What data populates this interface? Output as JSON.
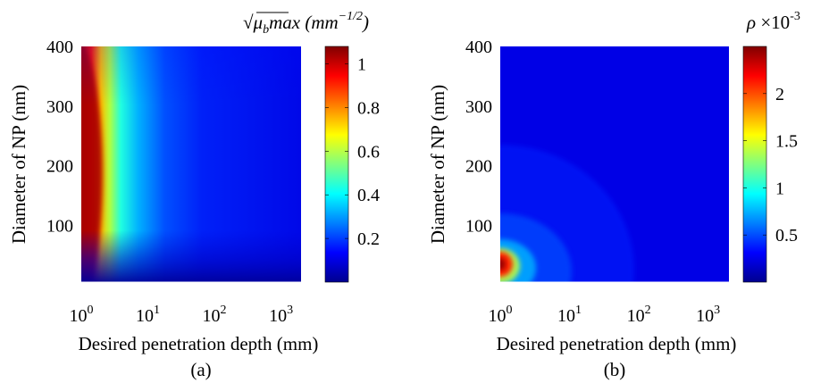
{
  "chart_data": [
    {
      "type": "heatmap",
      "panel_label": "(a)",
      "xlabel": "Desired penetration depth (mm)",
      "ylabel": "Diameter of NP (nm)",
      "x_scale": "log",
      "xlim": [
        1,
        2000
      ],
      "ylim": [
        5,
        400
      ],
      "x_ticks": [
        {
          "base": "10",
          "exp": "0",
          "value": 1
        },
        {
          "base": "10",
          "exp": "1",
          "value": 10
        },
        {
          "base": "10",
          "exp": "2",
          "value": 100
        },
        {
          "base": "10",
          "exp": "3",
          "value": 1000
        }
      ],
      "y_ticks": [
        {
          "label": "100",
          "value": 100
        },
        {
          "label": "200",
          "value": 200
        },
        {
          "label": "300",
          "value": 300
        },
        {
          "label": "400",
          "value": 400
        }
      ],
      "colorbar": {
        "title": "√μ_b max (mm^-1/2)",
        "title_sqrt": "√",
        "title_mu": "μ",
        "title_sub": "b",
        "title_max": "max",
        "title_unit_open": "(mm",
        "title_unit_exp": "−1/2",
        "title_unit_close": ")",
        "range": [
          0,
          1.08
        ],
        "ticks": [
          {
            "label": "0.2",
            "value": 0.2
          },
          {
            "label": "0.4",
            "value": 0.4
          },
          {
            "label": "0.6",
            "value": 0.6
          },
          {
            "label": "0.8",
            "value": 0.8
          },
          {
            "label": "1",
            "value": 1.0
          }
        ]
      },
      "colormap": "jet",
      "description_values": {
        "peak_value": 1.05,
        "peak_at": {
          "depth_mm": 1,
          "diameter_nm": 200
        }
      }
    },
    {
      "type": "heatmap",
      "panel_label": "(b)",
      "xlabel": "Desired penetration depth (mm)",
      "ylabel": "Diameter of NP (nm)",
      "x_scale": "log",
      "xlim": [
        1,
        2000
      ],
      "ylim": [
        5,
        400
      ],
      "x_ticks": [
        {
          "base": "10",
          "exp": "0",
          "value": 1
        },
        {
          "base": "10",
          "exp": "1",
          "value": 10
        },
        {
          "base": "10",
          "exp": "2",
          "value": 100
        },
        {
          "base": "10",
          "exp": "3",
          "value": 1000
        }
      ],
      "y_ticks": [
        {
          "label": "100",
          "value": 100
        },
        {
          "label": "200",
          "value": 200
        },
        {
          "label": "300",
          "value": 300
        },
        {
          "label": "400",
          "value": 400
        }
      ],
      "colorbar": {
        "title_rho": "ρ",
        "title_mult": "×10",
        "title_exp": "-3",
        "range": [
          0,
          2.5
        ],
        "ticks": [
          {
            "label": "0.5",
            "value": 0.5
          },
          {
            "label": "1",
            "value": 1.0
          },
          {
            "label": "1.5",
            "value": 1.5
          },
          {
            "label": "2",
            "value": 2.0
          }
        ]
      },
      "colormap": "jet",
      "description_values": {
        "peak_value": 2.45,
        "peak_at": {
          "depth_mm": 1,
          "diameter_nm": 35
        }
      }
    }
  ]
}
